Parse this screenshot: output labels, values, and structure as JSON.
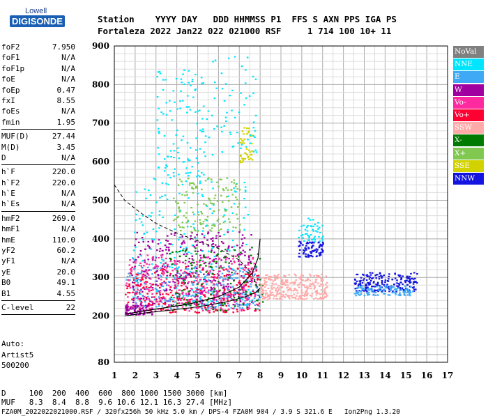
{
  "logo": {
    "top": "Lowell",
    "bottom": "DIGISONDE"
  },
  "header": {
    "line1": "Station    YYYY DAY   DDD HHMMSS P1  FFS S AXN PPS IGA PS",
    "line2": "Fortaleza 2022 Jan22 022 021000 RSF     1 714 100 10+ 11"
  },
  "params": {
    "group1": [
      {
        "label": "foF2",
        "value": "7.950"
      },
      {
        "label": "foF1",
        "value": "N/A"
      },
      {
        "label": "foF1p",
        "value": "N/A"
      },
      {
        "label": "foE",
        "value": "N/A"
      },
      {
        "label": "foEp",
        "value": "0.47"
      },
      {
        "label": "fxI",
        "value": "8.55"
      },
      {
        "label": "foEs",
        "value": "N/A"
      },
      {
        "label": "fmin",
        "value": "1.95"
      }
    ],
    "group2": [
      {
        "label": "MUF(D)",
        "value": "27.44"
      },
      {
        "label": "M(D)",
        "value": "3.45"
      },
      {
        "label": "D",
        "value": "N/A"
      }
    ],
    "group3": [
      {
        "label": "h`F",
        "value": "220.0"
      },
      {
        "label": "h`F2",
        "value": "220.0"
      },
      {
        "label": "h`E",
        "value": "N/A"
      },
      {
        "label": "h`Es",
        "value": "N/A"
      }
    ],
    "group4": [
      {
        "label": "hmF2",
        "value": "269.0"
      },
      {
        "label": "hmF1",
        "value": "N/A"
      },
      {
        "label": "hmE",
        "value": "110.0"
      },
      {
        "label": "yF2",
        "value": "60.2"
      },
      {
        "label": "yF1",
        "value": "N/A"
      },
      {
        "label": "yE",
        "value": "20.0"
      },
      {
        "label": "B0",
        "value": "49.1"
      },
      {
        "label": "B1",
        "value": "4.55"
      }
    ],
    "group5": [
      {
        "label": "C-level",
        "value": "22"
      }
    ]
  },
  "auto": {
    "line1": "Auto:",
    "line2": "Artist5",
    "line3": "500200"
  },
  "legend": [
    {
      "label": "NoVal",
      "color": "#808080"
    },
    {
      "label": "NNE",
      "color": "#00e5ff"
    },
    {
      "label": "E",
      "color": "#3fa9f5"
    },
    {
      "label": "W",
      "color": "#a000a0"
    },
    {
      "label": "Vo-",
      "color": "#ff2aa0"
    },
    {
      "label": "Vo+",
      "color": "#ff0033"
    },
    {
      "label": "SSW",
      "color": "#ffaaa8"
    },
    {
      "label": "X-",
      "color": "#007a00"
    },
    {
      "label": "X+",
      "color": "#80c850"
    },
    {
      "label": "SSE",
      "color": "#d2d200"
    },
    {
      "label": "NNW",
      "color": "#1414e0"
    }
  ],
  "bottom": {
    "d_row": "D     100  200  400  600  800 1000 1500 3000 [km]",
    "muf_row": "MUF   8.3  8.4  8.8  9.6 10.6 12.1 16.3 27.4 [MHz]",
    "footer": "FZA0M_2022022021000.RSF / 320fx256h 50 kHz 5.0 km / DPS-4 FZA0M 904 / 3.9 S 321.6 E   Ion2Png 1.3.20"
  },
  "chart_data": {
    "type": "scatter",
    "title": "",
    "xlabel": "",
    "ylabel": "",
    "xlim": [
      1,
      17
    ],
    "ylim": [
      80,
      900
    ],
    "xticks": [
      1,
      2,
      3,
      4,
      5,
      6,
      7,
      8,
      9,
      10,
      11,
      12,
      13,
      14,
      15,
      16,
      17
    ],
    "yticks": [
      80,
      200,
      300,
      400,
      500,
      600,
      700,
      800,
      900
    ],
    "grid": true,
    "clusters": [
      {
        "name": "W",
        "x": [
          1.8,
          7.6
        ],
        "y": [
          230,
          420
        ],
        "count": 420
      },
      {
        "name": "Vo-",
        "x": [
          1.5,
          7.8
        ],
        "y": [
          215,
          360
        ],
        "count": 380
      },
      {
        "name": "Vo+",
        "x": [
          1.5,
          8.0
        ],
        "y": [
          210,
          330
        ],
        "count": 250
      },
      {
        "name": "E",
        "x": [
          1.5,
          8.0
        ],
        "y": [
          220,
          330
        ],
        "count": 220
      },
      {
        "name": "NNE",
        "x": [
          1.8,
          7.5
        ],
        "y": [
          230,
          560
        ],
        "count": 200
      },
      {
        "name": "X-",
        "x": [
          3.5,
          8.2
        ],
        "y": [
          215,
          380
        ],
        "count": 140
      },
      {
        "name": "X+",
        "x": [
          3.8,
          7.0
        ],
        "y": [
          420,
          560
        ],
        "count": 140
      },
      {
        "name": "SSW",
        "x": [
          8.0,
          11.2
        ],
        "y": [
          245,
          310
        ],
        "count": 320
      },
      {
        "name": "NNW",
        "x": [
          12.5,
          15.5
        ],
        "y": [
          265,
          315
        ],
        "count": 200
      },
      {
        "name": "E",
        "x": [
          12.5,
          15.3
        ],
        "y": [
          255,
          280
        ],
        "count": 110
      },
      {
        "name": "NNW",
        "x": [
          9.8,
          11.0
        ],
        "y": [
          355,
          395
        ],
        "count": 80
      },
      {
        "name": "NNE",
        "x": [
          9.8,
          11.0
        ],
        "y": [
          395,
          455
        ],
        "count": 50
      },
      {
        "name": "NNE",
        "x": [
          3.0,
          5.5
        ],
        "y": [
          560,
          840
        ],
        "count": 120
      },
      {
        "name": "SSE",
        "x": [
          7.0,
          7.6
        ],
        "y": [
          600,
          690
        ],
        "count": 45
      },
      {
        "name": "NNE",
        "x": [
          5.5,
          7.8
        ],
        "y": [
          620,
          880
        ],
        "count": 60
      },
      {
        "name": "W",
        "x": [
          1.5,
          2.8
        ],
        "y": [
          205,
          230
        ],
        "count": 70
      }
    ],
    "trace_solid": [
      [
        1.5,
        200
      ],
      [
        2.5,
        208
      ],
      [
        3.5,
        214
      ],
      [
        4.5,
        220
      ],
      [
        5.5,
        228
      ],
      [
        6.5,
        238
      ],
      [
        7.3,
        250
      ],
      [
        7.8,
        262
      ],
      [
        8.0,
        272
      ]
    ],
    "trace_dashed": [
      [
        1.0,
        540
      ],
      [
        1.5,
        500
      ],
      [
        2.2,
        470
      ],
      [
        3.0,
        440
      ],
      [
        4.0,
        415
      ],
      [
        5.0,
        395
      ],
      [
        6.0,
        375
      ],
      [
        7.0,
        345
      ],
      [
        7.6,
        310
      ],
      [
        7.9,
        270
      ],
      [
        8.0,
        240
      ]
    ],
    "profile_curve": [
      [
        1.5,
        205
      ],
      [
        3.0,
        218
      ],
      [
        4.5,
        230
      ],
      [
        6.0,
        250
      ],
      [
        7.0,
        275
      ],
      [
        7.6,
        310
      ],
      [
        7.9,
        350
      ],
      [
        8.0,
        400
      ]
    ]
  }
}
